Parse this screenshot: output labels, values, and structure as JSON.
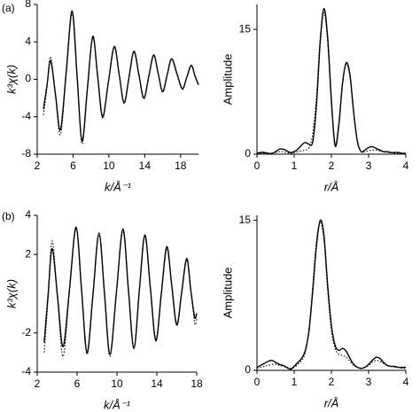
{
  "chart_data": [
    {
      "type": "line",
      "label": "(a)",
      "y_label": "k³χ(k)",
      "x_label": "k/Å⁻¹",
      "x": [
        2.7,
        3.1,
        3.5,
        4.05,
        4.6,
        5.25,
        5.9,
        6.45,
        7.0,
        7.6,
        8.2,
        8.75,
        9.3,
        9.95,
        10.6,
        11.15,
        11.7,
        12.25,
        12.8,
        13.35,
        13.9,
        14.45,
        15.0,
        15.5,
        16.0,
        16.5,
        17.0,
        17.6,
        18.2,
        18.7,
        19.2,
        19.6,
        20.0
      ],
      "x_placeholder_unused": null,
      "series": [
        {
          "color": "#000000",
          "style": "solid",
          "values": [
            -3.2,
            -0.6,
            2.0,
            -1.7,
            -5.4,
            0.95,
            7.3,
            0.35,
            -6.6,
            -1.0,
            4.6,
            0.3,
            -4.0,
            -0.25,
            3.5,
            0.5,
            -2.5,
            0.25,
            3.0,
            0.5,
            -2.0,
            0.3,
            2.6,
            0.65,
            -1.3,
            0.45,
            2.2,
            0.6,
            -1.0,
            0.25,
            1.5,
            0.4,
            -0.6
          ]
        },
        {
          "color": "#000000",
          "style": "dotted",
          "values": [
            -3.8,
            -0.8,
            2.4,
            -1.9,
            -5.9,
            0.8,
            7.0,
            0.3,
            -6.9,
            -1.1,
            4.4,
            0.3,
            -4.2,
            -0.2,
            3.4,
            0.5,
            -2.6,
            0.2,
            2.9,
            0.4,
            -2.1,
            0.3,
            2.5,
            0.6,
            -1.4,
            0.4,
            2.1,
            0.5,
            -1.1,
            0.2,
            1.4,
            0.3,
            -0.5
          ]
        }
      ],
      "xlim": [
        2,
        20
      ],
      "xticks": [
        2,
        6,
        10,
        14,
        18
      ],
      "ylim": [
        -8,
        8
      ],
      "yticks": [
        -8,
        -4,
        0,
        4,
        8
      ]
    },
    {
      "type": "line",
      "y_label": "Amplitude",
      "x_label": "r/Å",
      "x": [
        0,
        0.1,
        0.2,
        0.3,
        0.4,
        0.5,
        0.6,
        0.7,
        0.8,
        0.9,
        1.0,
        1.1,
        1.2,
        1.3,
        1.4,
        1.5,
        1.6,
        1.7,
        1.8,
        1.9,
        2.0,
        2.1,
        2.2,
        2.3,
        2.4,
        2.5,
        2.6,
        2.7,
        2.8,
        2.9,
        3.0,
        3.1,
        3.2,
        3.3,
        3.4,
        3.5,
        3.6,
        3.7,
        3.8,
        3.9,
        4.0
      ],
      "series": [
        {
          "color": "#000000",
          "style": "solid",
          "values": [
            0.1,
            0.2,
            0.2,
            0.1,
            0.1,
            0.3,
            0.6,
            0.6,
            0.4,
            0.2,
            0.3,
            0.6,
            1.1,
            1.4,
            1.2,
            1.5,
            6.0,
            13.5,
            17.5,
            14.0,
            6.5,
            1.0,
            3.5,
            8.5,
            11.0,
            9.5,
            5.0,
            1.5,
            0.3,
            0.5,
            0.8,
            0.9,
            0.7,
            0.5,
            0.3,
            0.3,
            0.2,
            0.2,
            0.2,
            0.1,
            0.1
          ]
        },
        {
          "color": "#000000",
          "style": "dotted",
          "values": [
            0.1,
            0.1,
            0.1,
            0.1,
            0.1,
            0.2,
            0.3,
            0.3,
            0.2,
            0.1,
            0.2,
            0.3,
            0.4,
            0.5,
            0.8,
            2.5,
            7.0,
            14.0,
            17.0,
            13.5,
            6.0,
            1.2,
            3.8,
            8.8,
            10.8,
            9.2,
            4.8,
            1.4,
            0.3,
            0.3,
            0.4,
            0.5,
            0.5,
            0.4,
            0.3,
            0.2,
            0.2,
            0.1,
            0.1,
            0.1,
            0.1
          ]
        }
      ],
      "xlim": [
        0,
        4
      ],
      "xticks": [
        0,
        1,
        2,
        3,
        4
      ],
      "ylim": [
        0,
        18
      ],
      "yticks": [
        0,
        15
      ]
    },
    {
      "type": "line",
      "label": "(b)",
      "y_label": "k³χ(k)",
      "x_label": "k/Å⁻¹",
      "x": [
        2.7,
        3.1,
        3.5,
        4.05,
        4.6,
        5.25,
        5.9,
        6.45,
        7.0,
        7.6,
        8.2,
        8.75,
        9.3,
        9.95,
        10.6,
        11.15,
        11.7,
        12.25,
        12.8,
        13.35,
        13.9,
        14.45,
        15.0,
        15.5,
        16.0,
        16.5,
        17.0,
        17.4,
        17.8,
        18.0
      ],
      "series": [
        {
          "color": "#000000",
          "style": "solid",
          "values": [
            -2.5,
            0,
            2.3,
            -0.2,
            -2.7,
            0.3,
            3.4,
            0.2,
            -3.0,
            0.0,
            3.1,
            0.0,
            -3.1,
            0.1,
            3.3,
            0.2,
            -2.8,
            0.2,
            3.0,
            0.3,
            -2.4,
            0.0,
            2.4,
            0.4,
            -1.6,
            0.1,
            1.8,
            0.2,
            -1.2,
            -1.0
          ]
        },
        {
          "color": "#000000",
          "style": "dotted",
          "values": [
            -3.0,
            -0.2,
            2.7,
            -0.3,
            -3.2,
            0.2,
            3.3,
            0.1,
            -3.1,
            0.0,
            3.0,
            0.0,
            -3.2,
            0.1,
            3.2,
            0.2,
            -2.7,
            0.2,
            2.9,
            0.3,
            -2.3,
            0.0,
            2.3,
            0.4,
            -1.5,
            0.1,
            1.7,
            0.3,
            -1.5,
            -1.3
          ]
        }
      ],
      "xlim": [
        2,
        18
      ],
      "xticks": [
        2,
        6,
        10,
        14,
        18
      ],
      "ylim": [
        -4,
        4
      ],
      "yticks": [
        -4,
        -2,
        2,
        4
      ]
    },
    {
      "type": "line",
      "y_label": "Amplitude",
      "x_label": "r/Å",
      "x": [
        0,
        0.1,
        0.2,
        0.3,
        0.4,
        0.5,
        0.6,
        0.7,
        0.8,
        0.9,
        1.0,
        1.1,
        1.2,
        1.3,
        1.4,
        1.5,
        1.6,
        1.7,
        1.8,
        1.9,
        2.0,
        2.1,
        2.2,
        2.3,
        2.4,
        2.5,
        2.6,
        2.7,
        2.8,
        2.9,
        3.0,
        3.1,
        3.2,
        3.3,
        3.4,
        3.5,
        3.6,
        3.7,
        3.8,
        3.9,
        4.0
      ],
      "series": [
        {
          "color": "#000000",
          "style": "solid",
          "values": [
            0.3,
            0.5,
            0.7,
            0.9,
            1.0,
            0.8,
            0.6,
            0.5,
            0.3,
            0.1,
            0.4,
            0.8,
            1.2,
            2.0,
            4.0,
            8.0,
            12.5,
            15.0,
            13.5,
            8.5,
            4.5,
            2.5,
            2.0,
            2.2,
            1.9,
            1.2,
            0.6,
            0.3,
            0.2,
            0.3,
            0.6,
            1.0,
            1.3,
            1.2,
            0.8,
            0.5,
            0.4,
            0.4,
            0.3,
            0.3,
            0.3
          ]
        },
        {
          "color": "#000000",
          "style": "dotted",
          "values": [
            0.2,
            0.3,
            0.4,
            0.5,
            0.6,
            0.6,
            0.5,
            0.4,
            0.3,
            0.2,
            0.3,
            0.6,
            1.0,
            1.8,
            4.2,
            8.5,
            13.0,
            14.8,
            13.0,
            8.0,
            4.0,
            2.2,
            1.6,
            1.5,
            1.3,
            0.9,
            0.5,
            0.3,
            0.2,
            0.3,
            0.5,
            0.8,
            1.0,
            0.9,
            0.7,
            0.5,
            0.4,
            0.3,
            0.3,
            0.2,
            0.2
          ]
        }
      ],
      "xlim": [
        0,
        4
      ],
      "xticks": [
        0,
        1,
        2,
        3,
        4
      ],
      "ylim": [
        0,
        15.5
      ],
      "yticks": [
        0,
        15
      ]
    }
  ]
}
